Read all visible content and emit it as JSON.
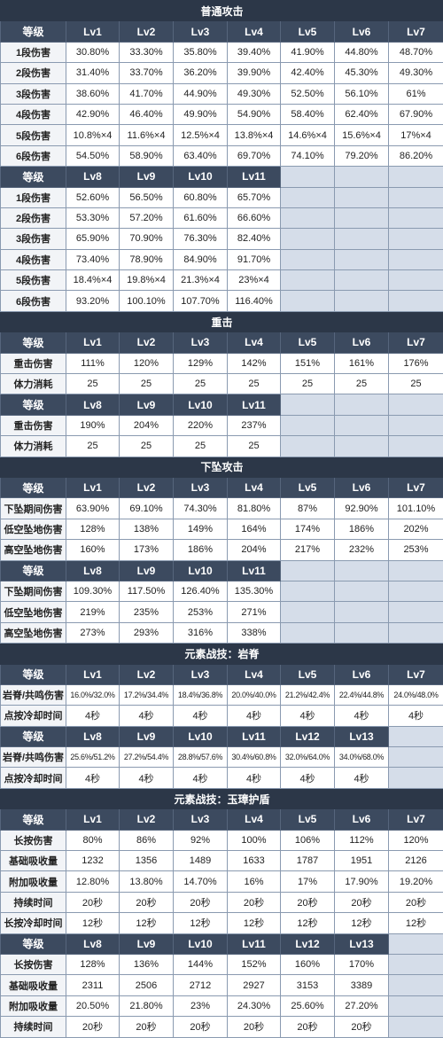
{
  "sections": [
    {
      "title": "普通攻击",
      "blocks": [
        {
          "header": [
            "等级",
            "Lv1",
            "Lv2",
            "Lv3",
            "Lv4",
            "Lv5",
            "Lv6",
            "Lv7"
          ],
          "rows": [
            {
              "label": "1段伤害",
              "values": [
                "30.80%",
                "33.30%",
                "35.80%",
                "39.40%",
                "41.90%",
                "44.80%",
                "48.70%"
              ]
            },
            {
              "label": "2段伤害",
              "values": [
                "31.40%",
                "33.70%",
                "36.20%",
                "39.90%",
                "42.40%",
                "45.30%",
                "49.30%"
              ]
            },
            {
              "label": "3段伤害",
              "values": [
                "38.60%",
                "41.70%",
                "44.90%",
                "49.30%",
                "52.50%",
                "56.10%",
                "61%"
              ]
            },
            {
              "label": "4段伤害",
              "values": [
                "42.90%",
                "46.40%",
                "49.90%",
                "54.90%",
                "58.40%",
                "62.40%",
                "67.90%"
              ]
            },
            {
              "label": "5段伤害",
              "values": [
                "10.8%×4",
                "11.6%×4",
                "12.5%×4",
                "13.8%×4",
                "14.6%×4",
                "15.6%×4",
                "17%×4"
              ]
            },
            {
              "label": "6段伤害",
              "values": [
                "54.50%",
                "58.90%",
                "63.40%",
                "69.70%",
                "74.10%",
                "79.20%",
                "86.20%"
              ]
            }
          ]
        },
        {
          "header": [
            "等级",
            "Lv8",
            "Lv9",
            "Lv10",
            "Lv11"
          ],
          "rows": [
            {
              "label": "1段伤害",
              "values": [
                "52.60%",
                "56.50%",
                "60.80%",
                "65.70%"
              ]
            },
            {
              "label": "2段伤害",
              "values": [
                "53.30%",
                "57.20%",
                "61.60%",
                "66.60%"
              ]
            },
            {
              "label": "3段伤害",
              "values": [
                "65.90%",
                "70.90%",
                "76.30%",
                "82.40%"
              ]
            },
            {
              "label": "4段伤害",
              "values": [
                "73.40%",
                "78.90%",
                "84.90%",
                "91.70%"
              ]
            },
            {
              "label": "5段伤害",
              "values": [
                "18.4%×4",
                "19.8%×4",
                "21.3%×4",
                "23%×4"
              ]
            },
            {
              "label": "6段伤害",
              "values": [
                "93.20%",
                "100.10%",
                "107.70%",
                "116.40%"
              ]
            }
          ]
        }
      ]
    },
    {
      "title": "重击",
      "blocks": [
        {
          "header": [
            "等级",
            "Lv1",
            "Lv2",
            "Lv3",
            "Lv4",
            "Lv5",
            "Lv6",
            "Lv7"
          ],
          "rows": [
            {
              "label": "重击伤害",
              "values": [
                "111%",
                "120%",
                "129%",
                "142%",
                "151%",
                "161%",
                "176%"
              ]
            },
            {
              "label": "体力消耗",
              "values": [
                "25",
                "25",
                "25",
                "25",
                "25",
                "25",
                "25"
              ]
            }
          ]
        },
        {
          "header": [
            "等级",
            "Lv8",
            "Lv9",
            "Lv10",
            "Lv11"
          ],
          "rows": [
            {
              "label": "重击伤害",
              "values": [
                "190%",
                "204%",
                "220%",
                "237%"
              ]
            },
            {
              "label": "体力消耗",
              "values": [
                "25",
                "25",
                "25",
                "25"
              ]
            }
          ]
        }
      ]
    },
    {
      "title": "下坠攻击",
      "blocks": [
        {
          "header": [
            "等级",
            "Lv1",
            "Lv2",
            "Lv3",
            "Lv4",
            "Lv5",
            "Lv6",
            "Lv7"
          ],
          "rows": [
            {
              "label": "下坠期间伤害",
              "values": [
                "63.90%",
                "69.10%",
                "74.30%",
                "81.80%",
                "87%",
                "92.90%",
                "101.10%"
              ]
            },
            {
              "label": "低空坠地伤害",
              "values": [
                "128%",
                "138%",
                "149%",
                "164%",
                "174%",
                "186%",
                "202%"
              ]
            },
            {
              "label": "高空坠地伤害",
              "values": [
                "160%",
                "173%",
                "186%",
                "204%",
                "217%",
                "232%",
                "253%"
              ]
            }
          ]
        },
        {
          "header": [
            "等级",
            "Lv8",
            "Lv9",
            "Lv10",
            "Lv11"
          ],
          "rows": [
            {
              "label": "下坠期间伤害",
              "values": [
                "109.30%",
                "117.50%",
                "126.40%",
                "135.30%"
              ]
            },
            {
              "label": "低空坠地伤害",
              "values": [
                "219%",
                "235%",
                "253%",
                "271%"
              ]
            },
            {
              "label": "高空坠地伤害",
              "values": [
                "273%",
                "293%",
                "316%",
                "338%"
              ]
            }
          ]
        }
      ]
    },
    {
      "title": "元素战技：岩脊",
      "blocks": [
        {
          "header": [
            "等级",
            "Lv1",
            "Lv2",
            "Lv3",
            "Lv4",
            "Lv5",
            "Lv6",
            "Lv7"
          ],
          "rows": [
            {
              "label": "岩脊/共鸣伤害",
              "values": [
                "16.0%/32.0%",
                "17.2%/34.4%",
                "18.4%/36.8%",
                "20.0%/40.0%",
                "21.2%/42.4%",
                "22.4%/44.8%",
                "24.0%/48.0%"
              ]
            },
            {
              "label": "点按冷却时间",
              "values": [
                "4秒",
                "4秒",
                "4秒",
                "4秒",
                "4秒",
                "4秒",
                "4秒"
              ]
            }
          ]
        },
        {
          "header": [
            "等级",
            "Lv8",
            "Lv9",
            "Lv10",
            "Lv11",
            "Lv12",
            "Lv13"
          ],
          "rows": [
            {
              "label": "岩脊/共鸣伤害",
              "values": [
                "25.6%/51.2%",
                "27.2%/54.4%",
                "28.8%/57.6%",
                "30.4%/60.8%",
                "32.0%/64.0%",
                "34.0%/68.0%"
              ]
            },
            {
              "label": "点按冷却时间",
              "values": [
                "4秒",
                "4秒",
                "4秒",
                "4秒",
                "4秒",
                "4秒"
              ]
            }
          ]
        }
      ]
    },
    {
      "title": "元素战技：玉璋护盾",
      "blocks": [
        {
          "header": [
            "等级",
            "Lv1",
            "Lv2",
            "Lv3",
            "Lv4",
            "Lv5",
            "Lv6",
            "Lv7"
          ],
          "rows": [
            {
              "label": "长按伤害",
              "values": [
                "80%",
                "86%",
                "92%",
                "100%",
                "106%",
                "112%",
                "120%"
              ]
            },
            {
              "label": "基础吸收量",
              "values": [
                "1232",
                "1356",
                "1489",
                "1633",
                "1787",
                "1951",
                "2126"
              ]
            },
            {
              "label": "附加吸收量",
              "values": [
                "12.80%",
                "13.80%",
                "14.70%",
                "16%",
                "17%",
                "17.90%",
                "19.20%"
              ]
            },
            {
              "label": "持续时间",
              "values": [
                "20秒",
                "20秒",
                "20秒",
                "20秒",
                "20秒",
                "20秒",
                "20秒"
              ]
            },
            {
              "label": "长按冷却时间",
              "values": [
                "12秒",
                "12秒",
                "12秒",
                "12秒",
                "12秒",
                "12秒",
                "12秒"
              ]
            }
          ]
        },
        {
          "header": [
            "等级",
            "Lv8",
            "Lv9",
            "Lv10",
            "Lv11",
            "Lv12",
            "Lv13"
          ],
          "rows": [
            {
              "label": "长按伤害",
              "values": [
                "128%",
                "136%",
                "144%",
                "152%",
                "160%",
                "170%"
              ]
            },
            {
              "label": "基础吸收量",
              "values": [
                "2311",
                "2506",
                "2712",
                "2927",
                "3153",
                "3389"
              ]
            },
            {
              "label": "附加吸收量",
              "values": [
                "20.50%",
                "21.80%",
                "23%",
                "24.30%",
                "25.60%",
                "27.20%"
              ]
            },
            {
              "label": "持续时间",
              "values": [
                "20秒",
                "20秒",
                "20秒",
                "20秒",
                "20秒",
                "20秒"
              ]
            }
          ]
        }
      ]
    }
  ]
}
